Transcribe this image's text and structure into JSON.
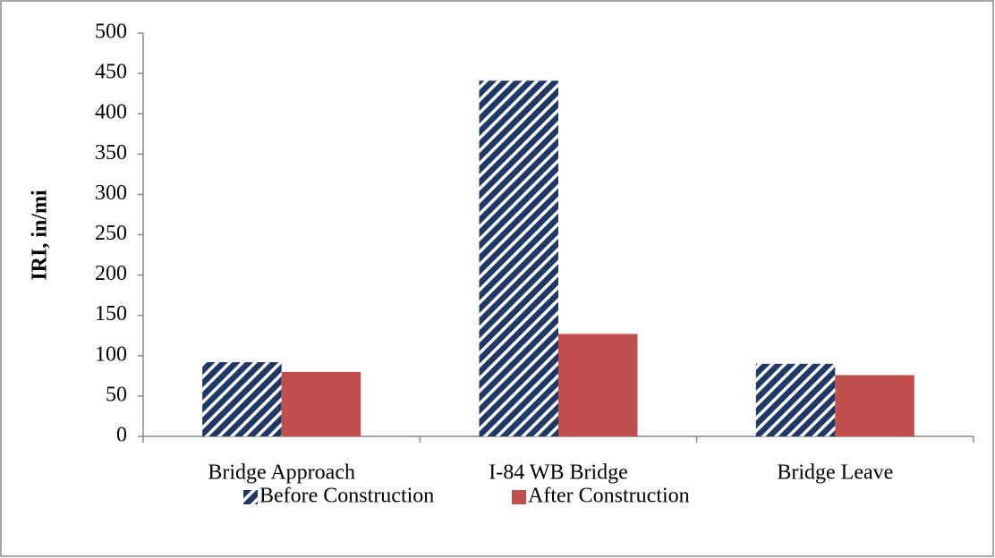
{
  "chart_data": {
    "type": "bar",
    "ylabel": "IRI, in/mi",
    "categories": [
      "Bridge Approach",
      "I-84 WB Bridge",
      "Bridge Leave"
    ],
    "series": [
      {
        "name": "Before Construction",
        "color": "#1f3864",
        "values": [
          92,
          441,
          90
        ]
      },
      {
        "name": "After Construction",
        "color": "#c0504d",
        "values": [
          80,
          127,
          76
        ]
      }
    ],
    "ylim": [
      0,
      500
    ],
    "yticks": [
      0,
      50,
      100,
      150,
      200,
      250,
      300,
      350,
      400,
      450,
      500
    ],
    "legend": "bottom"
  }
}
